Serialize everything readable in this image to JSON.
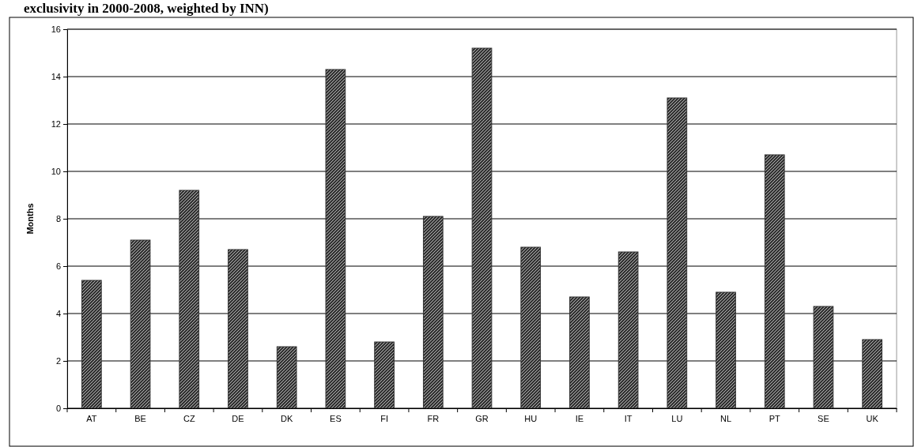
{
  "chart_data": {
    "type": "bar",
    "title": "exclusivity in 2000-2008, weighted by INN)",
    "ylabel": "Months",
    "categories": [
      "AT",
      "BE",
      "CZ",
      "DE",
      "DK",
      "ES",
      "FI",
      "FR",
      "GR",
      "HU",
      "IE",
      "IT",
      "LU",
      "NL",
      "PT",
      "SE",
      "UK"
    ],
    "values": [
      5.4,
      7.1,
      9.2,
      6.7,
      2.6,
      14.3,
      2.8,
      8.1,
      15.2,
      6.8,
      4.7,
      6.6,
      13.1,
      4.9,
      10.7,
      4.3,
      2.9
    ],
    "color": "#333333",
    "ylim": [
      0,
      16
    ],
    "yticks": [
      0,
      2,
      4,
      6,
      8,
      10,
      12,
      14,
      16
    ],
    "grid": "y"
  }
}
